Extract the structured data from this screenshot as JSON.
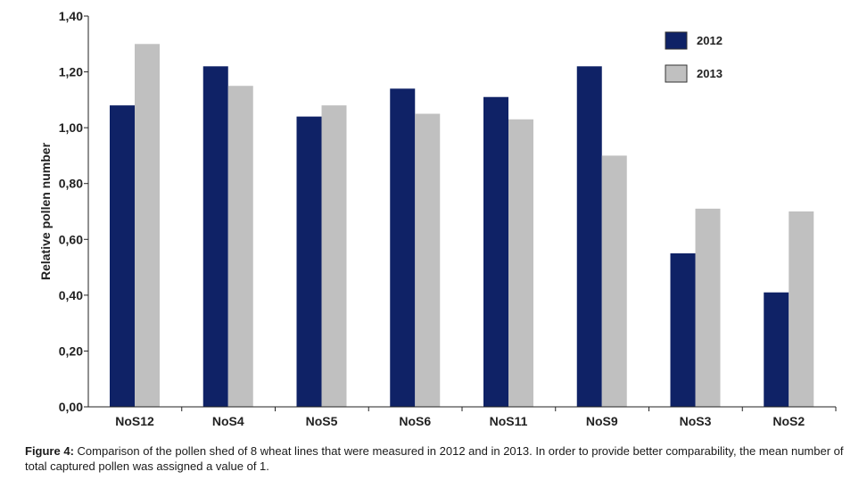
{
  "chart_data": {
    "type": "bar",
    "categories": [
      "NoS12",
      "NoS4",
      "NoS5",
      "NoS6",
      "NoS11",
      "NoS9",
      "NoS3",
      "NoS2"
    ],
    "series": [
      {
        "name": "2012",
        "color": "#0f2266",
        "values": [
          1.08,
          1.22,
          1.04,
          1.14,
          1.11,
          1.22,
          0.55,
          0.41
        ]
      },
      {
        "name": "2013",
        "color": "#c0c0c0",
        "values": [
          1.3,
          1.15,
          1.08,
          1.05,
          1.03,
          0.9,
          0.71,
          0.7
        ]
      }
    ],
    "ylabel": "Relative pollen number",
    "xlabel": "",
    "ylim": [
      0,
      1.4
    ],
    "yticks": [
      "0,00",
      "0,20",
      "0,40",
      "0,60",
      "0,80",
      "1,00",
      "1,20",
      "1,40"
    ],
    "grid": false,
    "legend_position": "top-right"
  },
  "caption": {
    "label": "Figure 4:",
    "text": " Comparison of the pollen shed of 8 wheat lines that were measured in 2012 and in 2013. In order to provide better comparability, the mean number of total captured pollen was assigned a value of 1."
  }
}
